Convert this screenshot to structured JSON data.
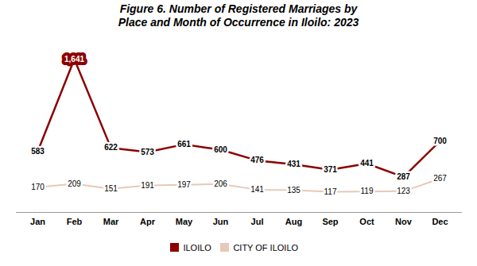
{
  "chart_data": {
    "type": "line",
    "title": "Figure 6. Number of Registered Marriages by\nPlace and Month of Occurrence in Iloilo: 2023",
    "categories": [
      "Jan",
      "Feb",
      "Mar",
      "Apr",
      "May",
      "Jun",
      "Jul",
      "Aug",
      "Sep",
      "Oct",
      "Nov",
      "Dec"
    ],
    "series": [
      {
        "name": "ILOILO",
        "color": "#8B0000",
        "values": [
          583,
          1641,
          622,
          573,
          661,
          600,
          476,
          431,
          371,
          441,
          287,
          700
        ],
        "value_labels": [
          "583",
          "1,641",
          "622",
          "573",
          "661",
          "600",
          "476",
          "431",
          "371",
          "441",
          "287",
          "700"
        ]
      },
      {
        "name": "CITY OF ILOILO",
        "color": "#E8C8B8",
        "values": [
          170,
          209,
          151,
          191,
          197,
          206,
          141,
          135,
          117,
          119,
          123,
          267
        ]
      }
    ],
    "ylim": [
      -120,
      1850
    ],
    "data_labels": true,
    "tick_labels": "x",
    "legend": "bottom",
    "grid": false
  }
}
